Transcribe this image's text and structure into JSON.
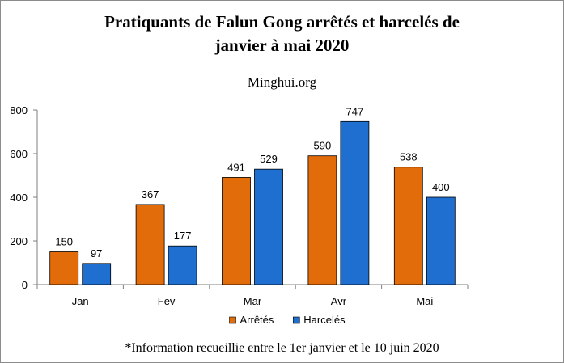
{
  "chart_data": {
    "type": "bar",
    "title_line1": "Pratiquants de Falun Gong arrêtés et harcelés de",
    "title_line2": "janvier à mai 2020",
    "subtitle": "Minghui.org",
    "categories": [
      "Jan",
      "Fev",
      "Mar",
      "Avr",
      "Mai"
    ],
    "series": [
      {
        "name": "Arrêtés",
        "color": "#e36c0a",
        "values": [
          150,
          367,
          491,
          590,
          538
        ]
      },
      {
        "name": "Harcelés",
        "color": "#1f6fd1",
        "values": [
          97,
          177,
          529,
          747,
          400
        ]
      }
    ],
    "yticks": [
      0,
      200,
      400,
      600,
      800
    ],
    "ylim": [
      0,
      800
    ],
    "legend_position": "bottom",
    "footnote": "*Information recueillie entre le 1er janvier et le 10 juin 2020"
  }
}
